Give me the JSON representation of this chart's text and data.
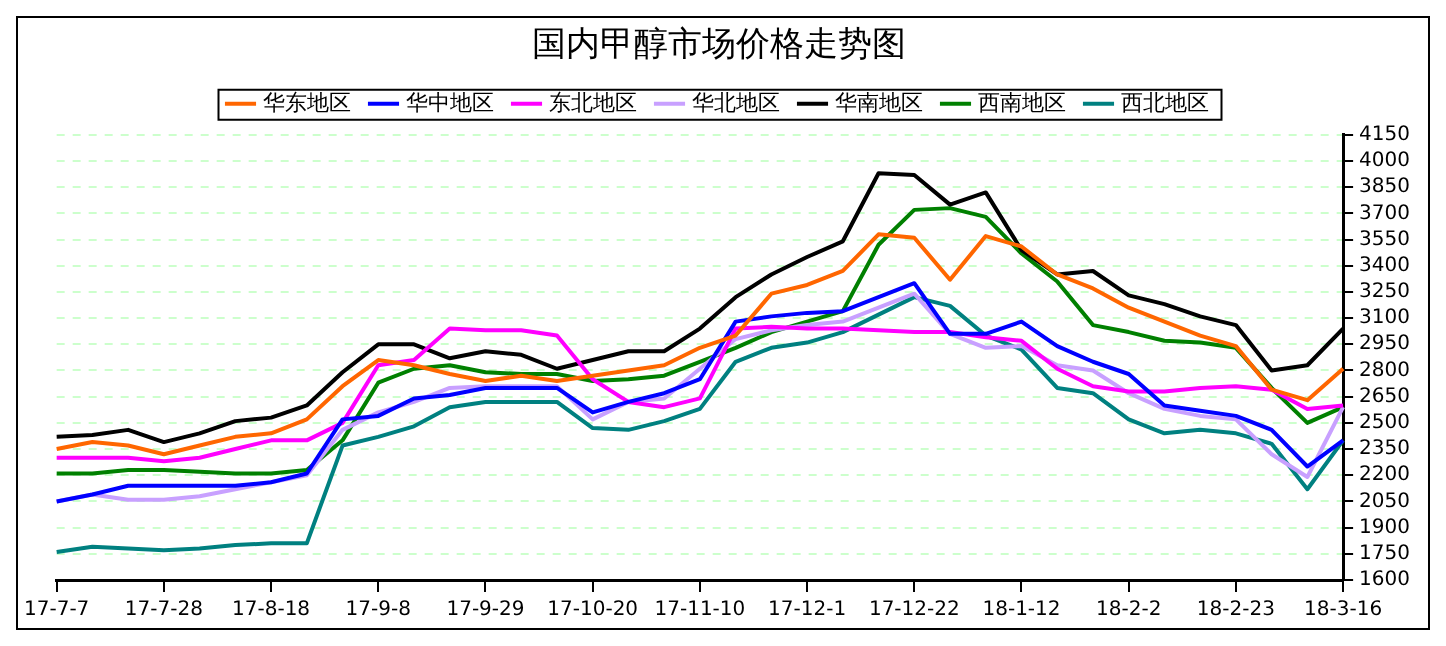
{
  "chart_data": {
    "type": "line",
    "title": "国内甲醇市场价格走势图",
    "categories": [
      "17-7-7",
      null,
      null,
      "17-7-28",
      null,
      null,
      "17-8-18",
      null,
      null,
      "17-9-8",
      null,
      null,
      "17-9-29",
      null,
      null,
      "17-10-20",
      null,
      null,
      "17-11-10",
      null,
      null,
      "17-12-1",
      null,
      null,
      "17-12-22",
      null,
      null,
      "18-1-12",
      null,
      null,
      "18-2-2",
      null,
      null,
      "18-2-23",
      null,
      null,
      "18-3-16"
    ],
    "series": [
      {
        "name": "华东地区",
        "color": "#ff6600",
        "values": [
          2350,
          2390,
          2370,
          2320,
          2370,
          2420,
          2440,
          2520,
          2710,
          2860,
          2830,
          2780,
          2740,
          2770,
          2740,
          2770,
          2800,
          2830,
          2930,
          3000,
          3240,
          3290,
          3370,
          3580,
          3560,
          3320,
          3570,
          3510,
          3350,
          3270,
          3160,
          3080,
          3000,
          2940,
          2690,
          2630,
          2810
        ]
      },
      {
        "name": "华中地区",
        "color": "#0000ff",
        "values": [
          2050,
          2090,
          2140,
          2140,
          2140,
          2140,
          2160,
          2210,
          2520,
          2540,
          2640,
          2660,
          2700,
          2700,
          2700,
          2560,
          2620,
          2670,
          2750,
          3080,
          3110,
          3130,
          3140,
          3220,
          3300,
          3010,
          3010,
          3080,
          2940,
          2850,
          2780,
          2600,
          2570,
          2540,
          2460,
          2250,
          2400
        ]
      },
      {
        "name": "东北地区",
        "color": "#ff00ff",
        "values": [
          2300,
          2300,
          2300,
          2280,
          2300,
          2350,
          2400,
          2400,
          2500,
          2830,
          2860,
          3040,
          3030,
          3030,
          3000,
          2750,
          2620,
          2590,
          2640,
          3040,
          3050,
          3040,
          3040,
          3030,
          3020,
          3020,
          2990,
          2970,
          2810,
          2710,
          2680,
          2680,
          2700,
          2710,
          2690,
          2580,
          2600
        ]
      },
      {
        "name": "华北地区",
        "color": "#c8a0ff",
        "values": [
          2050,
          2090,
          2060,
          2060,
          2080,
          2120,
          2160,
          2200,
          2460,
          2560,
          2620,
          2700,
          2710,
          2710,
          2710,
          2520,
          2620,
          2640,
          2810,
          2980,
          3030,
          3060,
          3080,
          3160,
          3240,
          3010,
          2930,
          2940,
          2830,
          2800,
          2670,
          2580,
          2540,
          2520,
          2320,
          2190,
          2590
        ]
      },
      {
        "name": "华南地区",
        "color": "#000000",
        "values": [
          2420,
          2430,
          2460,
          2390,
          2440,
          2510,
          2530,
          2600,
          2790,
          2950,
          2950,
          2870,
          2910,
          2890,
          2810,
          2860,
          2910,
          2910,
          3040,
          3220,
          3350,
          3450,
          3540,
          3930,
          3920,
          3750,
          3820,
          3490,
          3350,
          3370,
          3230,
          3180,
          3110,
          3060,
          2800,
          2830,
          3040
        ]
      },
      {
        "name": "西南地区",
        "color": "#008000",
        "values": [
          2210,
          2210,
          2230,
          2230,
          2220,
          2210,
          2210,
          2230,
          2400,
          2730,
          2810,
          2830,
          2790,
          2780,
          2780,
          2740,
          2750,
          2770,
          2850,
          2930,
          3020,
          3080,
          3140,
          3520,
          3720,
          3730,
          3680,
          3470,
          3310,
          3060,
          3020,
          2970,
          2960,
          2930,
          2700,
          2500,
          2590
        ]
      },
      {
        "name": "西北地区",
        "color": "#008080",
        "values": [
          1760,
          1790,
          1780,
          1770,
          1780,
          1800,
          1810,
          1810,
          2370,
          2420,
          2480,
          2590,
          2620,
          2620,
          2620,
          2470,
          2460,
          2510,
          2580,
          2850,
          2930,
          2960,
          3020,
          3120,
          3220,
          3170,
          3000,
          2920,
          2700,
          2670,
          2520,
          2440,
          2460,
          2440,
          2380,
          2120,
          2400
        ]
      }
    ],
    "ylim": [
      1600,
      4150
    ],
    "yticks": [
      1600,
      1750,
      1900,
      2050,
      2200,
      2350,
      2500,
      2650,
      2800,
      2950,
      3100,
      3250,
      3400,
      3550,
      3700,
      3850,
      4000,
      4150
    ],
    "grid": "y",
    "legend": "top",
    "marker": "none",
    "line_style": "solid"
  }
}
